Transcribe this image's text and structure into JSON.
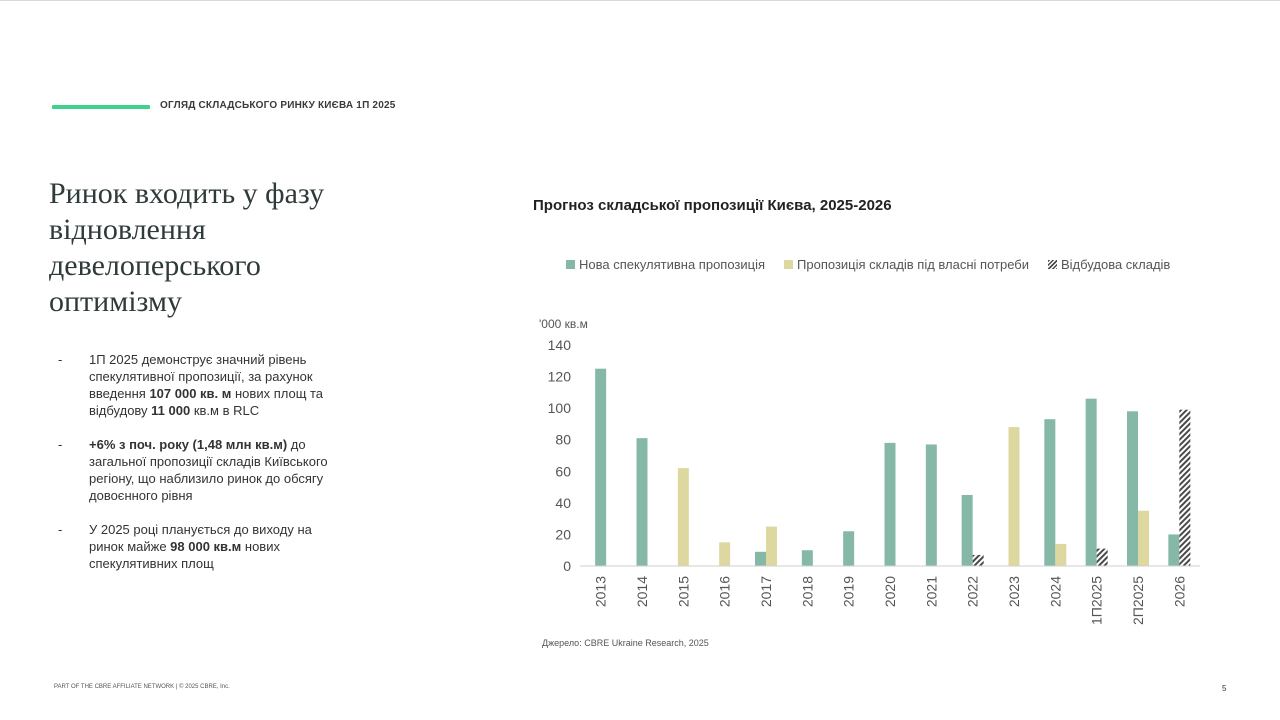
{
  "header": {
    "label": "ОГЛЯД СКЛАДСЬКОГО РИНКУ КИЄВА 1П 2025"
  },
  "headline": "Ринок входить у фазу відновлення девелоперського оптимізму",
  "bullets": [
    {
      "dash": "-",
      "parts": [
        "1П 2025 демонструє значний рівень спекулятивної пропозиції, за рахунок введення ",
        "107 000 кв. м",
        " нових площ та відбудову ",
        "11 000",
        " кв.м в RLC"
      ]
    },
    {
      "dash": "-",
      "parts": [
        "",
        "+6% з поч. року (1,48 млн кв.м)",
        " до загальної пропозиції складів Київського регіону, що наблизило ринок до обсягу довоєнного рівня"
      ]
    },
    {
      "dash": "-",
      "parts": [
        "У 2025 році планується до виходу на ринок майже ",
        "98 000 кв.м",
        " нових спекулятивних площ"
      ]
    }
  ],
  "colors": {
    "accent": "#3fd18e",
    "speculative": "#86b8a8",
    "owner": "#ddd8a0",
    "rebuild": "#4a4a4a"
  },
  "chart_data": {
    "type": "bar",
    "title": "Прогноз складської пропозиції Києва, 2025-2026",
    "ylabel": "'000 кв.м",
    "xlabel": "",
    "ylim": [
      0,
      140
    ],
    "yticks": [
      0,
      20,
      40,
      60,
      80,
      100,
      120,
      140
    ],
    "grid": false,
    "legend_position": "top",
    "categories": [
      "2013",
      "2014",
      "2015",
      "2016",
      "2017",
      "2018",
      "2019",
      "2020",
      "2021",
      "2022",
      "2023",
      "2024",
      "1П2025",
      "2П2025",
      "2026"
    ],
    "series": [
      {
        "name": "Нова спекулятивна пропозиція",
        "color": "#86b8a8",
        "pattern": "solid",
        "values": [
          125,
          81,
          0,
          0,
          9,
          10,
          22,
          78,
          77,
          45,
          0,
          93,
          106,
          98,
          20
        ]
      },
      {
        "name": "Пропозиція складів під власні потреби",
        "color": "#ddd8a0",
        "pattern": "solid",
        "values": [
          0,
          0,
          62,
          15,
          25,
          0,
          0,
          0,
          0,
          0,
          88,
          14,
          0,
          35,
          0
        ]
      },
      {
        "name": "Відбудова складів",
        "color": "#4a4a4a",
        "pattern": "hatch",
        "values": [
          0,
          0,
          0,
          0,
          0,
          0,
          0,
          0,
          0,
          7,
          0,
          0,
          11,
          0,
          99
        ]
      }
    ]
  },
  "source": "Джерело: CBRE Ukraine Research, 2025",
  "footer": "PART OF THE CBRE AFFILIATE NETWORK | © 2025 CBRE, Inc.",
  "page_number": "5"
}
